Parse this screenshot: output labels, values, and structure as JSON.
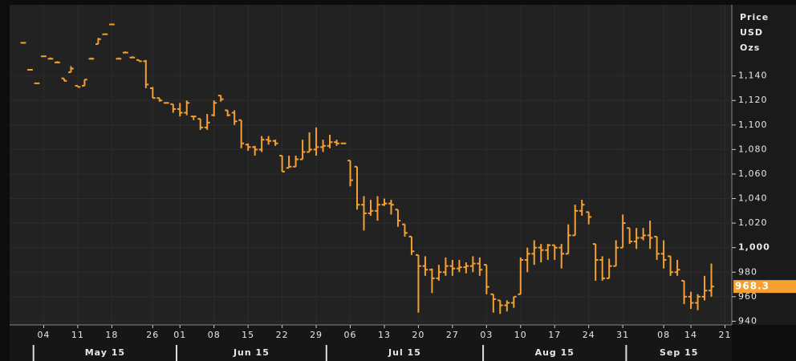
{
  "chart_data": {
    "type": "ohlc",
    "color": "#f5a030",
    "y_label": [
      "Price",
      "USD",
      "Ozs"
    ],
    "last_price": 968.3,
    "ylim": [
      937,
      1198
    ],
    "yticks": [
      {
        "value": 940,
        "label": "940"
      },
      {
        "value": 960,
        "label": "960"
      },
      {
        "value": 980,
        "label": "980"
      },
      {
        "value": 1000,
        "label": "1,000"
      },
      {
        "value": 1020,
        "label": "1,020"
      },
      {
        "value": 1040,
        "label": "1,040"
      },
      {
        "value": 1060,
        "label": "1,060"
      },
      {
        "value": 1080,
        "label": "1,080"
      },
      {
        "value": 1100,
        "label": "1,100"
      },
      {
        "value": 1120,
        "label": "1,120"
      },
      {
        "value": 1140,
        "label": "1,140"
      }
    ],
    "bold_ytick": 1000,
    "xlim": [
      "2015-04-27",
      "2015-09-22"
    ],
    "xticks": [
      {
        "value": "2015-05-04",
        "label": "04"
      },
      {
        "value": "2015-05-11",
        "label": "11"
      },
      {
        "value": "2015-05-18",
        "label": "18"
      },
      {
        "value": "2015-05-26",
        "label": "26"
      },
      {
        "value": "2015-06-01",
        "label": "01"
      },
      {
        "value": "2015-06-08",
        "label": "08"
      },
      {
        "value": "2015-06-15",
        "label": "15"
      },
      {
        "value": "2015-06-22",
        "label": "22"
      },
      {
        "value": "2015-06-29",
        "label": "29"
      },
      {
        "value": "2015-07-06",
        "label": "06"
      },
      {
        "value": "2015-07-13",
        "label": "13"
      },
      {
        "value": "2015-07-20",
        "label": "20"
      },
      {
        "value": "2015-07-27",
        "label": "27"
      },
      {
        "value": "2015-08-03",
        "label": "03"
      },
      {
        "value": "2015-08-10",
        "label": "10"
      },
      {
        "value": "2015-08-17",
        "label": "17"
      },
      {
        "value": "2015-08-24",
        "label": "24"
      },
      {
        "value": "2015-08-31",
        "label": "31"
      },
      {
        "value": "2015-09-08",
        "label": "08"
      },
      {
        "value": "2015-09-14",
        "label": "14"
      },
      {
        "value": "2015-09-21",
        "label": "21"
      }
    ],
    "months": [
      {
        "value": "2015-05-01",
        "label": "May 15"
      },
      {
        "value": "2015-06-01",
        "label": "Jun 15"
      },
      {
        "value": "2015-07-01",
        "label": "Jul 15"
      },
      {
        "value": "2015-08-03",
        "label": "Aug 15"
      },
      {
        "value": "2015-09-01",
        "label": "Sep 15"
      }
    ],
    "x": [
      "2015-04-29",
      "2015-04-30",
      "2015-05-01",
      "2015-05-04",
      "2015-05-05",
      "2015-05-06",
      "2015-05-07",
      "2015-05-08",
      "2015-05-11",
      "2015-05-12",
      "2015-05-13",
      "2015-05-14",
      "2015-05-15",
      "2015-05-18",
      "2015-05-19",
      "2015-05-20",
      "2015-05-21",
      "2015-05-22",
      "2015-05-25",
      "2015-05-26",
      "2015-05-27",
      "2015-05-28",
      "2015-05-29",
      "2015-06-01",
      "2015-06-02",
      "2015-06-03",
      "2015-06-04",
      "2015-06-05",
      "2015-06-08",
      "2015-06-09",
      "2015-06-10",
      "2015-06-11",
      "2015-06-12",
      "2015-06-15",
      "2015-06-16",
      "2015-06-17",
      "2015-06-18",
      "2015-06-19",
      "2015-06-22",
      "2015-06-23",
      "2015-06-24",
      "2015-06-25",
      "2015-06-26",
      "2015-06-29",
      "2015-06-30",
      "2015-07-01",
      "2015-07-02",
      "2015-07-03",
      "2015-07-06",
      "2015-07-07",
      "2015-07-08",
      "2015-07-09",
      "2015-07-10",
      "2015-07-13",
      "2015-07-14",
      "2015-07-15",
      "2015-07-16",
      "2015-07-17",
      "2015-07-20",
      "2015-07-21",
      "2015-07-22",
      "2015-07-23",
      "2015-07-24",
      "2015-07-27",
      "2015-07-28",
      "2015-07-29",
      "2015-07-30",
      "2015-07-31",
      "2015-08-03",
      "2015-08-04",
      "2015-08-05",
      "2015-08-06",
      "2015-08-07",
      "2015-08-10",
      "2015-08-11",
      "2015-08-12",
      "2015-08-13",
      "2015-08-14",
      "2015-08-17",
      "2015-08-18",
      "2015-08-19",
      "2015-08-20",
      "2015-08-21",
      "2015-08-24",
      "2015-08-25",
      "2015-08-26",
      "2015-08-27",
      "2015-08-28",
      "2015-08-31",
      "2015-09-01",
      "2015-09-02",
      "2015-09-03",
      "2015-09-04",
      "2015-09-07",
      "2015-09-08",
      "2015-09-09",
      "2015-09-10",
      "2015-09-11",
      "2015-09-14",
      "2015-09-15",
      "2015-09-16",
      "2015-09-17"
    ],
    "open": [
      1167,
      1145,
      1134,
      1156,
      1154,
      1151,
      1138,
      1143,
      1132,
      1132,
      1154,
      1166,
      1174,
      1182,
      1154,
      1159,
      1155,
      1153,
      1152,
      1130,
      1122,
      1118,
      1117,
      1113,
      1110,
      1107,
      1105,
      1098,
      1108,
      1124,
      1112,
      1110,
      1104,
      1084,
      1082,
      1080,
      1088,
      1087,
      1075,
      1065,
      1066,
      1072,
      1078,
      1080,
      1082,
      1083,
      1086,
      1085,
      1071,
      1066,
      1035,
      1028,
      1030,
      1035,
      1036,
      1031,
      1019,
      1009,
      994,
      985,
      982,
      975,
      980,
      985,
      983,
      984,
      985,
      987,
      986,
      962,
      957,
      953,
      955,
      962,
      990,
      995,
      1000,
      998,
      1002,
      1000,
      995,
      1010,
      1030,
      1029,
      1003,
      990,
      975,
      985,
      1000,
      1016,
      1005,
      1008,
      1010,
      1009,
      995,
      993,
      980,
      973,
      960,
      955,
      960,
      965
    ],
    "high": [
      1167,
      1145,
      1134,
      1156,
      1155,
      1152,
      1138,
      1148,
      1132,
      1137,
      1155,
      1171,
      1174,
      1182,
      1155,
      1160,
      1156,
      1153,
      1153,
      1131,
      1122,
      1118,
      1117,
      1118,
      1120,
      1107,
      1105,
      1109,
      1120,
      1124,
      1112,
      1112,
      1104,
      1085,
      1083,
      1091,
      1091,
      1088,
      1075,
      1075,
      1075,
      1088,
      1094,
      1098,
      1088,
      1092,
      1088,
      1085,
      1071,
      1066,
      1042,
      1039,
      1042,
      1040,
      1039,
      1031,
      1019,
      1009,
      994,
      993,
      983,
      986,
      992,
      990,
      990,
      988,
      993,
      992,
      986,
      962,
      957,
      957,
      960,
      992,
      1000,
      1006,
      1003,
      1003,
      1002,
      1003,
      1019,
      1035,
      1039,
      1029,
      1003,
      993,
      991,
      1006,
      1027,
      1016,
      1016,
      1016,
      1022,
      1009,
      1006,
      993,
      990,
      973,
      964,
      962,
      977,
      987
    ],
    "low": [
      1167,
      1145,
      1134,
      1156,
      1154,
      1151,
      1136,
      1143,
      1131,
      1132,
      1154,
      1166,
      1174,
      1182,
      1154,
      1159,
      1155,
      1152,
      1130,
      1122,
      1119,
      1118,
      1110,
      1107,
      1108,
      1104,
      1096,
      1096,
      1107,
      1119,
      1107,
      1100,
      1081,
      1079,
      1075,
      1078,
      1084,
      1083,
      1062,
      1065,
      1066,
      1072,
      1078,
      1075,
      1078,
      1081,
      1083,
      1085,
      1050,
      1031,
      1014,
      1026,
      1022,
      1034,
      1027,
      1017,
      1009,
      994,
      947,
      977,
      963,
      973,
      977,
      977,
      980,
      979,
      980,
      977,
      962,
      947,
      946,
      948,
      951,
      962,
      980,
      986,
      988,
      990,
      990,
      983,
      995,
      1010,
      1026,
      1019,
      973,
      973,
      975,
      985,
      1000,
      1003,
      999,
      1006,
      999,
      990,
      983,
      977,
      977,
      954,
      950,
      949,
      957,
      960
    ],
    "close": [
      1167,
      1145,
      1134,
      1156,
      1154,
      1151,
      1136,
      1146,
      1131,
      1137,
      1154,
      1170,
      1174,
      1182,
      1154,
      1159,
      1155,
      1152,
      1133,
      1122,
      1120,
      1118,
      1113,
      1110,
      1118,
      1107,
      1098,
      1102,
      1118,
      1121,
      1108,
      1103,
      1085,
      1082,
      1080,
      1088,
      1087,
      1085,
      1062,
      1066,
      1072,
      1078,
      1080,
      1082,
      1083,
      1086,
      1085,
      1085,
      1055,
      1035,
      1028,
      1030,
      1035,
      1036,
      1035,
      1022,
      1012,
      997,
      985,
      982,
      975,
      980,
      985,
      983,
      984,
      985,
      987,
      982,
      968,
      958,
      953,
      955,
      960,
      990,
      995,
      1000,
      998,
      1002,
      1000,
      995,
      1010,
      1030,
      1035,
      1025,
      990,
      975,
      985,
      1000,
      1020,
      1005,
      1008,
      1010,
      1008,
      995,
      990,
      980,
      982,
      960,
      955,
      960,
      965,
      968.3
    ]
  }
}
